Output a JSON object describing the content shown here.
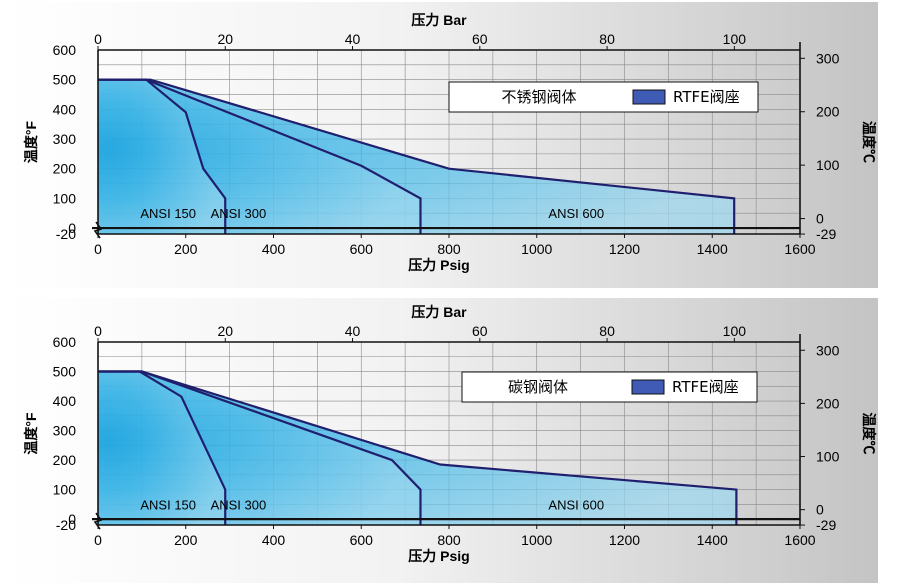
{
  "colors": {
    "panel_bg_left": "#ffffff",
    "panel_bg_right": "#c4c4c4",
    "region_fill_light": "#9fd8ef",
    "region_fill_mid": "#3ab4e6",
    "region_fill_deep": "#1aa3df",
    "curve_line": "#1f1f6e",
    "grid": "#8a8a8a",
    "legend_swatch": "#3f5bb5"
  },
  "chart_data": [
    {
      "type": "area",
      "top_axis_title": "压力 Bar",
      "bottom_axis_title": "压力 Psig",
      "left_axis_title": "温度°F",
      "right_axis_title": "温度℃",
      "x_psig_ticks": [
        "0",
        "200",
        "400",
        "600",
        "800",
        "1000",
        "1200",
        "1400",
        "1600"
      ],
      "x_bar_ticks": [
        "0",
        "20",
        "40",
        "60",
        "80",
        "100"
      ],
      "y_f_ticks": [
        "600",
        "500",
        "400",
        "300",
        "200",
        "100",
        "0",
        "-20"
      ],
      "y_c_ticks": [
        "300",
        "200",
        "100",
        "0",
        "-29"
      ],
      "xlim_psig": [
        0,
        1600
      ],
      "ylim_f": [
        -20,
        600
      ],
      "legend": {
        "body": "不锈钢阀体",
        "seat": "RTFE阀座"
      },
      "series": [
        {
          "name": "ANSI 600",
          "label": "ANSI 600",
          "x": [
            0,
            120,
            800,
            1450,
            1450
          ],
          "y": [
            500,
            500,
            200,
            100,
            -20
          ]
        },
        {
          "name": "ANSI 300",
          "label": "ANSI 300",
          "x": [
            0,
            110,
            600,
            735,
            735
          ],
          "y": [
            500,
            500,
            210,
            100,
            -20
          ]
        },
        {
          "name": "ANSI 150",
          "label": "ANSI 150",
          "x": [
            0,
            110,
            200,
            240,
            290,
            290
          ],
          "y": [
            500,
            500,
            390,
            200,
            100,
            -20
          ]
        }
      ]
    },
    {
      "type": "area",
      "top_axis_title": "压力 Bar",
      "bottom_axis_title": "压力 Psig",
      "left_axis_title": "温度°F",
      "right_axis_title": "温度℃",
      "x_psig_ticks": [
        "0",
        "200",
        "400",
        "600",
        "800",
        "1000",
        "1200",
        "1400",
        "1600"
      ],
      "x_bar_ticks": [
        "0",
        "20",
        "40",
        "60",
        "80",
        "100"
      ],
      "y_f_ticks": [
        "600",
        "500",
        "400",
        "300",
        "200",
        "100",
        "0",
        "-20"
      ],
      "y_c_ticks": [
        "300",
        "200",
        "100",
        "0",
        "-29"
      ],
      "xlim_psig": [
        0,
        1600
      ],
      "ylim_f": [
        -20,
        600
      ],
      "legend": {
        "body": "碳钢阀体",
        "seat": "RTFE阀座"
      },
      "series": [
        {
          "name": "ANSI 600",
          "label": "ANSI 600",
          "x": [
            0,
            100,
            780,
            1455,
            1455
          ],
          "y": [
            500,
            500,
            185,
            100,
            -20
          ]
        },
        {
          "name": "ANSI 300",
          "label": "ANSI 300",
          "x": [
            0,
            100,
            670,
            735,
            735
          ],
          "y": [
            500,
            500,
            200,
            100,
            -20
          ]
        },
        {
          "name": "ANSI 150",
          "label": "ANSI 150",
          "x": [
            0,
            95,
            190,
            290,
            290
          ],
          "y": [
            500,
            500,
            415,
            100,
            -20
          ]
        }
      ]
    }
  ]
}
